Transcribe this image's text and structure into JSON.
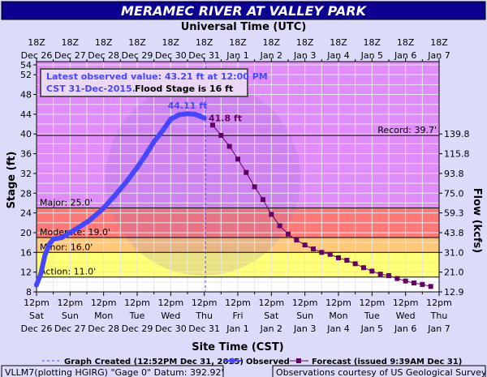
{
  "chart_data": {
    "type": "line",
    "title": "MERAMEC RIVER AT VALLEY PARK",
    "top_axis": {
      "label": "Universal Time (UTC)",
      "ticks": [
        {
          "line1": "18Z",
          "line2": "Dec 26"
        },
        {
          "line1": "18Z",
          "line2": "Dec 27"
        },
        {
          "line1": "18Z",
          "line2": "Dec 28"
        },
        {
          "line1": "18Z",
          "line2": "Dec 29"
        },
        {
          "line1": "18Z",
          "line2": "Dec 30"
        },
        {
          "line1": "18Z",
          "line2": "Dec 31"
        },
        {
          "line1": "18Z",
          "line2": "Jan 1"
        },
        {
          "line1": "18Z",
          "line2": "Jan 2"
        },
        {
          "line1": "18Z",
          "line2": "Jan 3"
        },
        {
          "line1": "18Z",
          "line2": "Jan 4"
        },
        {
          "line1": "18Z",
          "line2": "Jan 5"
        },
        {
          "line1": "18Z",
          "line2": "Jan 6"
        },
        {
          "line1": "18Z",
          "line2": "Jan 7"
        }
      ]
    },
    "xlabel": "Site Time (CST)",
    "x_ticks": [
      {
        "time": "12pm",
        "day": "Sat",
        "date": "Dec 26"
      },
      {
        "time": "12pm",
        "day": "Sun",
        "date": "Dec 27"
      },
      {
        "time": "12pm",
        "day": "Mon",
        "date": "Dec 28"
      },
      {
        "time": "12pm",
        "day": "Tue",
        "date": "Dec 29"
      },
      {
        "time": "12pm",
        "day": "Wed",
        "date": "Dec 30"
      },
      {
        "time": "12pm",
        "day": "Thu",
        "date": "Dec 31"
      },
      {
        "time": "12pm",
        "day": "Fri",
        "date": "Jan 1"
      },
      {
        "time": "12pm",
        "day": "Sat",
        "date": "Jan 2"
      },
      {
        "time": "12pm",
        "day": "Sun",
        "date": "Jan 3"
      },
      {
        "time": "12pm",
        "day": "Mon",
        "date": "Jan 4"
      },
      {
        "time": "12pm",
        "day": "Tue",
        "date": "Jan 5"
      },
      {
        "time": "12pm",
        "day": "Wed",
        "date": "Jan 6"
      },
      {
        "time": "12pm",
        "day": "Thu",
        "date": "Jan 7"
      }
    ],
    "xlim": [
      "2015-12-26T12:00",
      "2016-01-07T12:00"
    ],
    "ylabel": "Stage (ft)",
    "ylim": [
      8,
      54
    ],
    "y_ticks": [
      8,
      12,
      16,
      20,
      24,
      28,
      32,
      36,
      40,
      44,
      48,
      52,
      54
    ],
    "y2label": "Flow (kcfs)",
    "y2_ticks": [
      {
        "stage": 8,
        "flow": "12.9"
      },
      {
        "stage": 12,
        "flow": "21.0"
      },
      {
        "stage": 16,
        "flow": "31.0"
      },
      {
        "stage": 20,
        "flow": "43.8"
      },
      {
        "stage": 24,
        "flow": "59.3"
      },
      {
        "stage": 28,
        "flow": "75.0"
      },
      {
        "stage": 32,
        "flow": "93.8"
      },
      {
        "stage": 36,
        "flow": "115.8"
      },
      {
        "stage": 40,
        "flow": "139.8"
      }
    ],
    "grid": true,
    "flood_categories": [
      {
        "label": "Action: 11.0'",
        "stage": 11,
        "color": "#ffff78"
      },
      {
        "label": "Minor: 16.0'",
        "stage": 16,
        "color": "#ffc878"
      },
      {
        "label": "Moderate: 19.0'",
        "stage": 19,
        "color": "#ff7878"
      },
      {
        "label": "Major: 25.0'",
        "stage": 25,
        "color": "#e08cfa"
      }
    ],
    "record": {
      "label": "Record: 39.7'",
      "stage": 39.7
    },
    "series": [
      {
        "name": "Observed",
        "color": "#4646ff",
        "points": [
          [
            "2015-12-26T12:00",
            9.4
          ],
          [
            "2015-12-26T15:00",
            11.6
          ],
          [
            "2015-12-26T18:00",
            15.4
          ],
          [
            "2015-12-26T21:00",
            17.6
          ],
          [
            "2015-12-27T00:00",
            18.7
          ],
          [
            "2015-12-27T06:00",
            19.0
          ],
          [
            "2015-12-27T12:00",
            20.0
          ],
          [
            "2015-12-27T20:00",
            21.4
          ],
          [
            "2015-12-28T02:00",
            22.5
          ],
          [
            "2015-12-28T11:00",
            24.7
          ],
          [
            "2015-12-28T19:00",
            27.2
          ],
          [
            "2015-12-29T04:00",
            30.2
          ],
          [
            "2015-12-29T12:00",
            33.2
          ],
          [
            "2015-12-29T18:00",
            35.7
          ],
          [
            "2015-12-30T00:00",
            38.4
          ],
          [
            "2015-12-30T06:00",
            40.6
          ],
          [
            "2015-12-30T12:00",
            43.0
          ],
          [
            "2015-12-30T18:00",
            43.9
          ],
          [
            "2015-12-31T00:00",
            44.11
          ],
          [
            "2015-12-31T05:00",
            44.0
          ],
          [
            "2015-12-31T09:00",
            43.6
          ],
          [
            "2015-12-31T12:00",
            43.21
          ]
        ]
      },
      {
        "name": "Forecast (issued 9:39AM Dec 31)",
        "color": "#640064",
        "start": "2015-12-31T18:00",
        "interval_hours": 6,
        "values": [
          41.8,
          39.7,
          37.5,
          34.9,
          32.2,
          29.3,
          26.7,
          23.7,
          21.4,
          19.7,
          18.5,
          17.5,
          16.7,
          16.0,
          15.6,
          14.9,
          14.4,
          13.7,
          12.9,
          12.2,
          11.6,
          11.3,
          10.7,
          10.2,
          9.8,
          9.5,
          9.1
        ]
      }
    ],
    "annotations": {
      "peak_label": "44.11 ft",
      "peak_time": "2015-12-31T00:00",
      "peak_stage": 44.11,
      "forecast_crest_label": "41.8 ft",
      "info_line1": "Latest observed value: 43.21 ft at 12:00 PM",
      "info_line2a": "CST 31-Dec-2015.",
      "info_line2b": "Flood Stage is 16 ft"
    },
    "graph_created_time": "2015-12-31T12:52",
    "legend": {
      "created": "Graph Created (12:52PM Dec 31, 2015)",
      "observed": "Observed",
      "forecast": "Forecast (issued 9:39AM Dec 31)"
    },
    "footer_left": "VLLM7(plotting HGIRG) \"Gage 0\" Datum: 392.92'",
    "footer_right": "Observations courtesy of US Geological Survey"
  }
}
